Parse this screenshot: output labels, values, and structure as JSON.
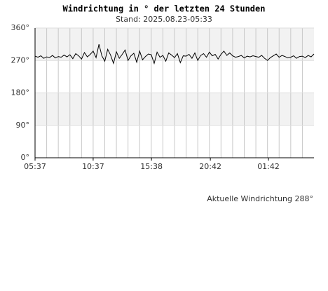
{
  "chart_data": {
    "type": "line",
    "title": "Windrichtung in ° der letzten 24 Stunden",
    "subtitle": "Stand: 2025.08.23-05:33",
    "annotation": "Aktuelle Windrichtung 288°",
    "grid": true,
    "xlim": [
      0,
      24
    ],
    "xticks": [
      {
        "value": 0,
        "label": "05:37"
      },
      {
        "value": 5,
        "label": "10:37"
      },
      {
        "value": 10.017,
        "label": "15:38"
      },
      {
        "value": 15.083,
        "label": "20:42"
      },
      {
        "value": 20.083,
        "label": "01:42"
      }
    ],
    "ylim": [
      0,
      360
    ],
    "yticks": [
      {
        "value": 0,
        "label": "0°"
      },
      {
        "value": 90,
        "label": "90°"
      },
      {
        "value": 180,
        "label": "180°"
      },
      {
        "value": 270,
        "label": "270°"
      },
      {
        "value": 360,
        "label": "360°"
      }
    ],
    "series": [
      {
        "color": "#000000",
        "x": [
          0,
          0.25,
          0.5,
          0.75,
          1,
          1.25,
          1.5,
          1.75,
          2,
          2.25,
          2.5,
          2.75,
          3,
          3.25,
          3.5,
          3.75,
          4,
          4.25,
          4.5,
          4.75,
          5,
          5.25,
          5.5,
          5.75,
          6,
          6.25,
          6.5,
          6.75,
          7,
          7.25,
          7.5,
          7.75,
          8,
          8.25,
          8.5,
          8.75,
          9,
          9.25,
          9.5,
          9.75,
          10,
          10.25,
          10.5,
          10.75,
          11,
          11.25,
          11.5,
          11.75,
          12,
          12.25,
          12.5,
          12.75,
          13,
          13.25,
          13.5,
          13.75,
          14,
          14.25,
          14.5,
          14.75,
          15,
          15.25,
          15.5,
          15.75,
          16,
          16.25,
          16.5,
          16.75,
          17,
          17.25,
          17.5,
          17.75,
          18,
          18.25,
          18.5,
          18.75,
          19,
          19.25,
          19.5,
          19.75,
          20,
          20.25,
          20.5,
          20.75,
          21,
          21.25,
          21.5,
          21.75,
          22,
          22.25,
          22.5,
          22.75,
          23,
          23.25,
          23.5,
          23.75,
          24
        ],
        "values": [
          282,
          279,
          283,
          276,
          280,
          278,
          284,
          277,
          281,
          279,
          285,
          280,
          286,
          275,
          289,
          283,
          274,
          292,
          280,
          287,
          296,
          278,
          315,
          283,
          268,
          301,
          285,
          262,
          294,
          276,
          287,
          299,
          270,
          283,
          290,
          265,
          296,
          272,
          281,
          288,
          286,
          262,
          293,
          279,
          284,
          268,
          291,
          285,
          278,
          289,
          264,
          283,
          282,
          287,
          276,
          291,
          270,
          284,
          289,
          279,
          293,
          283,
          287,
          274,
          287,
          296,
          284,
          291,
          283,
          279,
          281,
          284,
          277,
          282,
          280,
          283,
          281,
          279,
          284,
          276,
          270,
          278,
          283,
          288,
          279,
          284,
          281,
          277,
          279,
          283,
          276,
          281,
          282,
          278,
          284,
          280,
          288
        ]
      }
    ]
  }
}
